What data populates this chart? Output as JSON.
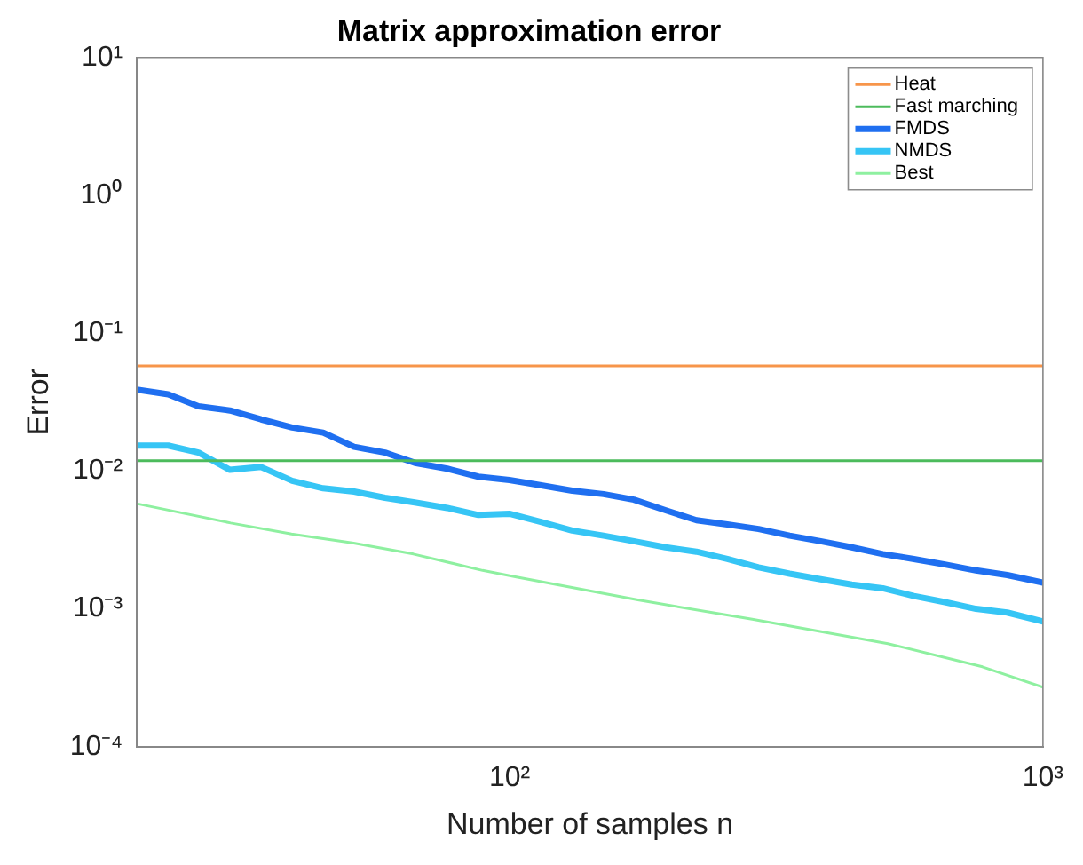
{
  "chart_data": {
    "type": "line",
    "title": "Matrix approximation error",
    "xlabel": "Number of samples n",
    "ylabel": "Error",
    "log": "xy",
    "xlim": [
      20,
      1000
    ],
    "ylim": [
      0.0001,
      10
    ],
    "xticks": [
      {
        "value": 100,
        "label": "10²"
      },
      {
        "value": 1000,
        "label": "10³"
      }
    ],
    "yticks": [
      {
        "value": 0.0001,
        "label": "10⁻⁴"
      },
      {
        "value": 0.001,
        "label": "10⁻³"
      },
      {
        "value": 0.01,
        "label": "10⁻²"
      },
      {
        "value": 0.1,
        "label": "10⁻¹"
      },
      {
        "value": 1,
        "label": "10⁰"
      },
      {
        "value": 10,
        "label": "10¹"
      }
    ],
    "x": [
      20,
      22.9,
      26.1,
      29.9,
      34.2,
      39.1,
      44.7,
      51.1,
      58.4,
      66.8,
      76.4,
      87.4,
      99.9,
      114,
      131,
      150,
      171,
      196,
      224,
      256,
      293,
      335,
      383,
      438,
      501,
      573,
      655,
      749,
      857,
      1000
    ],
    "grid": false,
    "legend": "top right",
    "marker": "none",
    "line_style": "solid",
    "series": [
      {
        "name": "Heat",
        "color": "#f7954a",
        "x": [
          20,
          1000
        ],
        "values": [
          0.058,
          0.058
        ]
      },
      {
        "name": "Fast marching",
        "color": "#4cbb5c",
        "x": [
          20,
          1000
        ],
        "values": [
          0.0119,
          0.0119
        ]
      },
      {
        "name": "FMDS",
        "color": "#1f6ff0",
        "values": [
          0.039,
          0.036,
          0.0295,
          0.0275,
          0.0237,
          0.0207,
          0.019,
          0.015,
          0.0136,
          0.0114,
          0.0104,
          0.0091,
          0.0086,
          0.0079,
          0.0072,
          0.0068,
          0.0062,
          0.0052,
          0.0044,
          0.0041,
          0.0038,
          0.0034,
          0.0031,
          0.0028,
          0.0025,
          0.0023,
          0.0021,
          0.0019,
          0.00176,
          0.00155
        ]
      },
      {
        "name": "NMDS",
        "color": "#36c5f5",
        "values": [
          0.0153,
          0.0153,
          0.0136,
          0.0102,
          0.0107,
          0.0085,
          0.0075,
          0.0071,
          0.0064,
          0.0059,
          0.0054,
          0.0048,
          0.0049,
          0.0043,
          0.0037,
          0.0034,
          0.0031,
          0.0028,
          0.0026,
          0.0023,
          0.002,
          0.0018,
          0.00164,
          0.0015,
          0.00141,
          0.00124,
          0.00112,
          0.001,
          0.00094,
          0.00081
        ]
      },
      {
        "name": "Best",
        "color": "#8ef0a0",
        "x": [
          20,
          30,
          39,
          51,
          66,
          89,
          103,
          174,
          285,
          512,
          770,
          1000
        ],
        "values": [
          0.0058,
          0.0042,
          0.0035,
          0.003,
          0.0025,
          0.0019,
          0.0017,
          0.00116,
          0.00084,
          0.00056,
          0.00038,
          0.00027
        ]
      }
    ]
  }
}
